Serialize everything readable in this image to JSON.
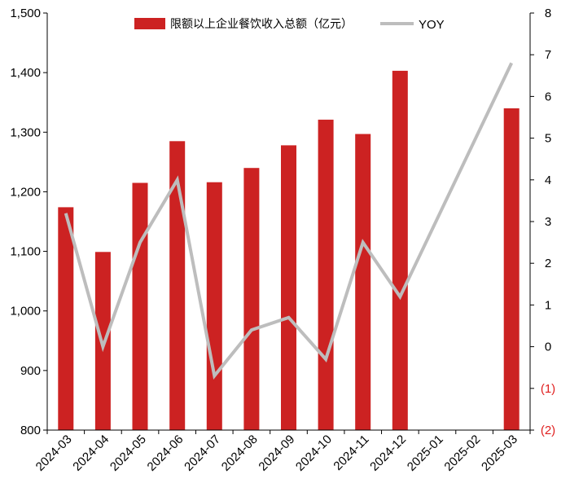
{
  "chart_data": {
    "type": "bar+line",
    "categories": [
      "2024-03",
      "2024-04",
      "2024-05",
      "2024-06",
      "2024-07",
      "2024-08",
      "2024-09",
      "2024-10",
      "2024-11",
      "2024-12",
      "2025-01",
      "2025-02",
      "2025-03"
    ],
    "series": [
      {
        "name": "限额以上企业餐饮收入总额（亿元）",
        "type": "bar",
        "axis": "left",
        "color": "#cc2222",
        "values": [
          1174,
          1099,
          1215,
          1285,
          1216,
          1240,
          1278,
          1321,
          1297,
          1403,
          null,
          null,
          1340
        ]
      },
      {
        "name": "YOY",
        "type": "line",
        "axis": "right",
        "color": "#bdbdbd",
        "values": [
          3.2,
          0.0,
          2.5,
          4.0,
          -0.7,
          0.4,
          0.7,
          -0.3,
          2.5,
          1.2,
          null,
          null,
          6.8
        ]
      }
    ],
    "y_left": {
      "min": 800,
      "max": 1500,
      "ticks": [
        800,
        900,
        1000,
        1100,
        1200,
        1300,
        1400,
        1500
      ],
      "tick_labels": [
        "800",
        "900",
        "1,000",
        "1,100",
        "1,200",
        "1,300",
        "1,400",
        "1,500"
      ]
    },
    "y_right": {
      "min": -2,
      "max": 8,
      "ticks": [
        -2,
        -1,
        0,
        1,
        2,
        3,
        4,
        5,
        6,
        7,
        8
      ],
      "tick_labels": [
        "(2)",
        "(1)",
        "0",
        "1",
        "2",
        "3",
        "4",
        "5",
        "6",
        "7",
        "8"
      ],
      "negative_label_color": "#e02020"
    },
    "legend": {
      "position": "top-center"
    },
    "grid": false
  }
}
